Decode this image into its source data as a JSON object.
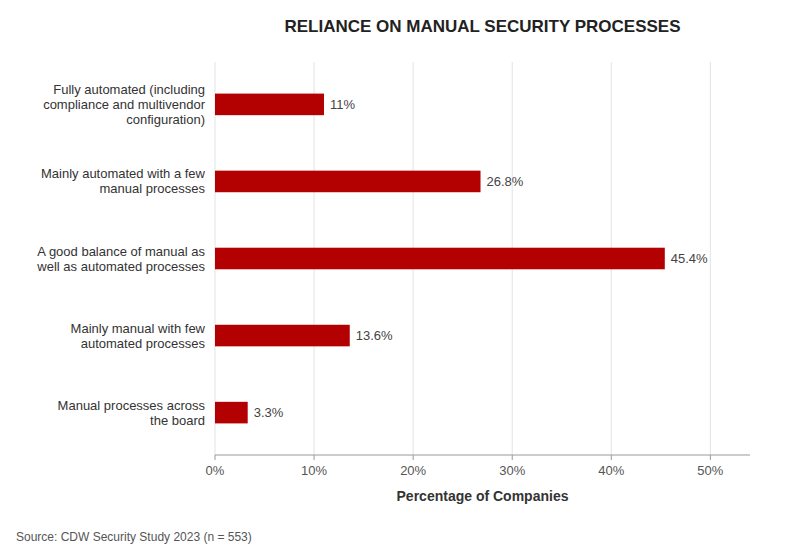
{
  "chart_data": {
    "type": "bar",
    "orientation": "horizontal",
    "title": "RELIANCE ON MANUAL SECURITY PROCESSES",
    "categories": [
      "Manual processes across\nthe board",
      "Mainly manual with few\nautomated processes",
      "A good balance of manual as\nwell as automated processes",
      "Mainly automated with a few\nmanual processes",
      "Fully automated (including\ncompliance and multivendor\nconfiguration)"
    ],
    "values": [
      3.3,
      13.6,
      45.4,
      26.8,
      11.0
    ],
    "value_labels": [
      "3.3%",
      "13.6%",
      "45.4%",
      "26.8%",
      "11%"
    ],
    "data_labels": true,
    "color": "#B30000",
    "xlabel": "Percentage of Companies",
    "xlim": [
      0,
      54
    ],
    "xticks": [
      {
        "value": 0,
        "label": "0%"
      },
      {
        "value": 10,
        "label": "10%"
      },
      {
        "value": 20,
        "label": "20%"
      },
      {
        "value": 30,
        "label": "30%"
      },
      {
        "value": 40,
        "label": "40%"
      },
      {
        "value": 50,
        "label": "50%"
      }
    ],
    "grid": true,
    "annotations": [
      "Source: CDW Security Study 2023 (n = 553)"
    ]
  }
}
